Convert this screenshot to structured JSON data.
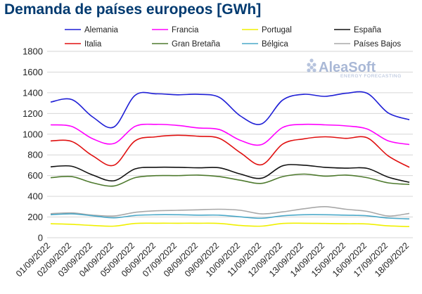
{
  "chart_data": {
    "type": "line",
    "title": "Demanda de países europeos [GWh]",
    "xlabel": "",
    "ylabel": "",
    "ylim": [
      0,
      1800
    ],
    "yticks": [
      0,
      200,
      400,
      600,
      800,
      1000,
      1200,
      1400,
      1600,
      1800
    ],
    "grid": true,
    "legend_position": "top",
    "categories": [
      "01/09/2022",
      "02/09/2022",
      "03/09/2022",
      "04/09/2022",
      "05/09/2022",
      "06/09/2022",
      "07/09/2022",
      "08/09/2022",
      "09/09/2022",
      "10/09/2022",
      "11/09/2022",
      "12/09/2022",
      "13/09/2022",
      "14/09/2022",
      "15/09/2022",
      "16/09/2022",
      "17/09/2022",
      "18/09/2022"
    ],
    "series": [
      {
        "name": "Alemania",
        "color": "#1f1fd6",
        "values": [
          1310,
          1335,
          1165,
          1070,
          1375,
          1390,
          1380,
          1385,
          1355,
          1175,
          1100,
          1330,
          1385,
          1365,
          1395,
          1395,
          1205,
          1140
        ]
      },
      {
        "name": "Francia",
        "color": "#ff00ff",
        "values": [
          1090,
          1075,
          955,
          910,
          1075,
          1095,
          1085,
          1060,
          1045,
          940,
          900,
          1065,
          1095,
          1090,
          1080,
          1050,
          935,
          900
        ]
      },
      {
        "name": "Portugal",
        "color": "#f0f000",
        "values": [
          135,
          130,
          118,
          112,
          138,
          140,
          140,
          140,
          138,
          118,
          112,
          138,
          140,
          138,
          135,
          133,
          115,
          108
        ]
      },
      {
        "name": "España",
        "color": "#111111",
        "values": [
          685,
          690,
          605,
          550,
          665,
          680,
          680,
          675,
          675,
          615,
          575,
          695,
          700,
          680,
          672,
          670,
          585,
          535
        ]
      },
      {
        "name": "Italia",
        "color": "#e01010",
        "values": [
          935,
          930,
          790,
          700,
          935,
          975,
          990,
          980,
          960,
          820,
          705,
          905,
          955,
          975,
          960,
          965,
          790,
          680
        ]
      },
      {
        "name": "Gran Bretaña",
        "color": "#4e7a2e",
        "values": [
          580,
          590,
          530,
          500,
          580,
          600,
          600,
          605,
          590,
          555,
          525,
          590,
          615,
          595,
          605,
          580,
          530,
          515
        ]
      },
      {
        "name": "Bélgica",
        "color": "#4aa8c8",
        "values": [
          222,
          230,
          212,
          192,
          215,
          222,
          222,
          218,
          218,
          202,
          188,
          212,
          222,
          222,
          218,
          212,
          190,
          182
        ]
      },
      {
        "name": "Países Bajos",
        "color": "#a8a8a8",
        "values": [
          232,
          240,
          218,
          210,
          245,
          260,
          265,
          270,
          275,
          265,
          230,
          250,
          280,
          300,
          275,
          255,
          210,
          235
        ]
      }
    ]
  },
  "watermark": {
    "brand": "AleaSoft",
    "subtitle": "ENERGY FORECASTING"
  }
}
